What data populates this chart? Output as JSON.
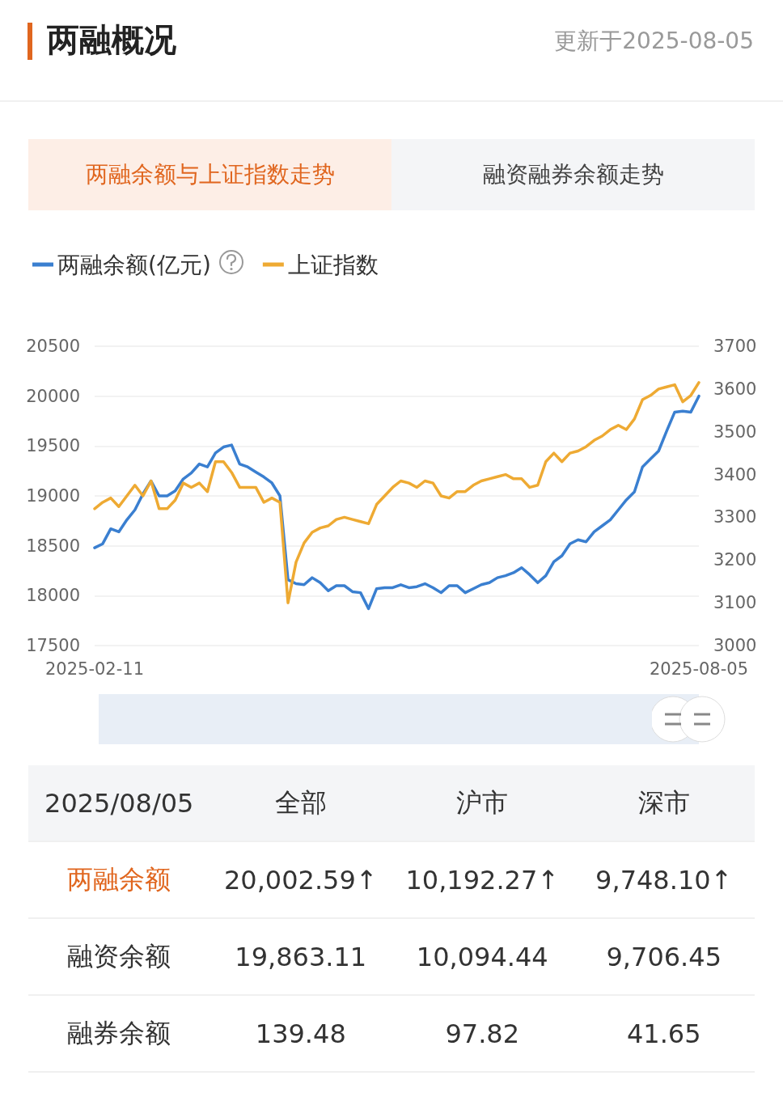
{
  "chart_data": [
    {
      "type": "line",
      "title": "两融概况",
      "annotations": [
        "更新于2025-08-05",
        "两融余额与上证指数走势",
        "融资融券余额走势"
      ],
      "categories": [
        "2025-02-11",
        null,
        null,
        null,
        null,
        null,
        null,
        null,
        null,
        null,
        null,
        null,
        null,
        null,
        null,
        null,
        null,
        null,
        null,
        null,
        null,
        null,
        null,
        null,
        null,
        null,
        null,
        null,
        null,
        null,
        null,
        null,
        null,
        null,
        null,
        null,
        null,
        null,
        null,
        null,
        null,
        null,
        null,
        null,
        null,
        null,
        null,
        null,
        null,
        null,
        null,
        null,
        null,
        null,
        null,
        null,
        null,
        null,
        null,
        null,
        null,
        null,
        null,
        null,
        null,
        null,
        null,
        null,
        null,
        null,
        null,
        null,
        null,
        null,
        null,
        "2025-08-05"
      ],
      "series": [
        {
          "name": "两融余额(亿元)",
          "color": "#3a7fd0",
          "values": [
            18480,
            18520,
            18670,
            18640,
            18760,
            18860,
            19020,
            19150,
            19000,
            19000,
            19050,
            19170,
            19230,
            19320,
            19290,
            19430,
            19490,
            19510,
            19320,
            19290,
            19240,
            19190,
            19130,
            19000,
            18160,
            18120,
            18110,
            18180,
            18130,
            18050,
            18100,
            18100,
            18040,
            18030,
            17870,
            18070,
            18080,
            18080,
            18110,
            18080,
            18090,
            18120,
            18080,
            18030,
            18100,
            18100,
            18030,
            18070,
            18110,
            18130,
            18180,
            18200,
            18230,
            18280,
            18210,
            18130,
            18200,
            18340,
            18400,
            18520,
            18560,
            18540,
            18640,
            18700,
            18760,
            18860,
            18960,
            19040,
            19290,
            19370,
            19450,
            19650,
            19840,
            19850,
            19840,
            20000
          ]
        },
        {
          "name": "上证指数",
          "color": "#eeaa33",
          "axis": "y2",
          "values": [
            3320,
            3335,
            3345,
            3325,
            3350,
            3375,
            3350,
            3385,
            3320,
            3320,
            3340,
            3380,
            3370,
            3380,
            3360,
            3430,
            3430,
            3405,
            3370,
            3370,
            3370,
            3335,
            3345,
            3335,
            3100,
            3195,
            3240,
            3265,
            3275,
            3280,
            3295,
            3300,
            3295,
            3290,
            3285,
            3330,
            3350,
            3370,
            3385,
            3380,
            3370,
            3385,
            3380,
            3350,
            3345,
            3360,
            3360,
            3375,
            3385,
            3390,
            3395,
            3400,
            3390,
            3390,
            3370,
            3375,
            3430,
            3450,
            3430,
            3450,
            3455,
            3465,
            3480,
            3490,
            3505,
            3515,
            3505,
            3530,
            3575,
            3585,
            3600,
            3605,
            3610,
            3570,
            3585,
            3615
          ]
        }
      ],
      "ylim": [
        17500,
        20500
      ],
      "yticks": [
        17500,
        18000,
        18500,
        19000,
        19500,
        20000,
        20500
      ],
      "y2lim": [
        3000,
        3700
      ],
      "y2ticks": [
        3000,
        3100,
        3200,
        3300,
        3400,
        3500,
        3600,
        3700
      ],
      "grid": "y",
      "legend": "top left",
      "marker": "none",
      "line_style": "solid"
    },
    {
      "type": "other",
      "annotations": [
        "2025/08/05",
        "全部",
        "沪市",
        "深市",
        "两融余额",
        "20,002.59↑",
        "10,192.27↑",
        "9,748.10↑",
        "融资余额",
        "19,863.11",
        "10,094.44",
        "9,706.45",
        "融券余额",
        "139.48",
        "97.82",
        "41.65"
      ]
    }
  ]
}
